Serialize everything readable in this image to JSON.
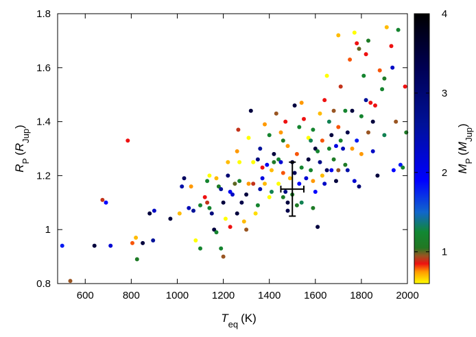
{
  "chart_data": {
    "type": "scatter",
    "title": "",
    "xlabel": {
      "main": "T",
      "sub": "eq",
      "unit": "(K)"
    },
    "ylabel": {
      "main": "R",
      "sub": "P",
      "unit_main": "R",
      "unit_sub": "Jup"
    },
    "colorbar_label": {
      "main": "M",
      "sub": "P",
      "unit_main": "M",
      "unit_sub": "Jup"
    },
    "xlim": [
      480,
      2000
    ],
    "ylim": [
      0.8,
      1.8
    ],
    "xticks": [
      600,
      800,
      1000,
      1200,
      1400,
      1600,
      1800,
      2000
    ],
    "yticks": [
      0.8,
      1,
      1.2,
      1.4,
      1.6,
      1.8
    ],
    "ytick_labels": [
      "0.8",
      "1",
      "1.2",
      "1.4",
      "1.6",
      "1.8"
    ],
    "colorbar": {
      "range": [
        0.6,
        4.0
      ],
      "ticks": [
        1,
        2,
        3,
        4
      ],
      "stops": [
        {
          "v": 0.6,
          "color": "#ffff00"
        },
        {
          "v": 0.75,
          "color": "#ff9900"
        },
        {
          "v": 0.85,
          "color": "#ee1111"
        },
        {
          "v": 0.95,
          "color": "#995522"
        },
        {
          "v": 1.05,
          "color": "#227722"
        },
        {
          "v": 1.25,
          "color": "#118833"
        },
        {
          "v": 1.5,
          "color": "#1166cc"
        },
        {
          "v": 1.9,
          "color": "#0000ff"
        },
        {
          "v": 2.6,
          "color": "#001199"
        },
        {
          "v": 3.3,
          "color": "#000055"
        },
        {
          "v": 4.0,
          "color": "#000000"
        }
      ]
    },
    "grid": false,
    "legend": "none",
    "errorbar": {
      "x": 1500,
      "y": 1.15,
      "xerr": 50,
      "yerr": 0.1
    },
    "points": [
      [
        500,
        0.94,
        1.8
      ],
      [
        535,
        0.81,
        0.95
      ],
      [
        640,
        0.94,
        3.5
      ],
      [
        675,
        1.11,
        0.9
      ],
      [
        690,
        1.1,
        1.9
      ],
      [
        710,
        0.94,
        2.2
      ],
      [
        785,
        1.33,
        0.85
      ],
      [
        805,
        0.95,
        0.8
      ],
      [
        820,
        0.97,
        0.7
      ],
      [
        825,
        0.89,
        1.1
      ],
      [
        850,
        0.95,
        3.5
      ],
      [
        880,
        1.06,
        3.5
      ],
      [
        895,
        0.96,
        2.6
      ],
      [
        900,
        1.07,
        2.3
      ],
      [
        970,
        1.04,
        3.5
      ],
      [
        1010,
        1.06,
        0.7
      ],
      [
        1020,
        1.16,
        2.5
      ],
      [
        1030,
        1.19,
        3.2
      ],
      [
        1050,
        1.08,
        2.4
      ],
      [
        1060,
        1.16,
        0.75
      ],
      [
        1070,
        1.07,
        2.6
      ],
      [
        1080,
        0.96,
        0.6
      ],
      [
        1100,
        0.93,
        1.2
      ],
      [
        1100,
        1.09,
        1.2
      ],
      [
        1120,
        1.12,
        0.85
      ],
      [
        1130,
        1.1,
        0.9
      ],
      [
        1140,
        1.08,
        1.2
      ],
      [
        1140,
        1.2,
        0.6
      ],
      [
        1150,
        1.06,
        2.9
      ],
      [
        1160,
        1.0,
        3.5
      ],
      [
        1170,
        0.99,
        1.2
      ],
      [
        1170,
        1.19,
        0.7
      ],
      [
        1180,
        1.16,
        1.1
      ],
      [
        1190,
        0.93,
        1.2
      ],
      [
        1190,
        1.15,
        2.6
      ],
      [
        1200,
        0.9,
        0.95
      ],
      [
        1200,
        1.1,
        3.5
      ],
      [
        1210,
        1.04,
        0.6
      ],
      [
        1220,
        1.2,
        3.0
      ],
      [
        1220,
        1.25,
        0.7
      ],
      [
        1230,
        1.01,
        0.85
      ],
      [
        1230,
        1.14,
        2.0
      ],
      [
        1240,
        1.13,
        2.3
      ],
      [
        1250,
        1.17,
        1.0
      ],
      [
        1260,
        1.06,
        3.5
      ],
      [
        1260,
        1.29,
        0.75
      ],
      [
        1265,
        1.37,
        0.9
      ],
      [
        1270,
        1.25,
        0.6
      ],
      [
        1270,
        1.18,
        1.2
      ],
      [
        1280,
        1.1,
        3.4
      ],
      [
        1290,
        1.03,
        0.7
      ],
      [
        1300,
        1.0,
        0.95
      ],
      [
        1300,
        1.13,
        3.5
      ],
      [
        1310,
        1.17,
        0.75
      ],
      [
        1320,
        1.44,
        3.5
      ],
      [
        1330,
        1.17,
        0.9
      ],
      [
        1330,
        1.25,
        0.6
      ],
      [
        1340,
        1.06,
        0.65
      ],
      [
        1350,
        1.09,
        1.2
      ],
      [
        1350,
        1.26,
        2.9
      ],
      [
        1360,
        1.3,
        2.6
      ],
      [
        1370,
        1.19,
        2.1
      ],
      [
        1370,
        1.23,
        0.85
      ],
      [
        1380,
        1.39,
        0.75
      ],
      [
        1380,
        1.17,
        0.7
      ],
      [
        1390,
        1.24,
        2.0
      ],
      [
        1400,
        1.35,
        1.2
      ],
      [
        1410,
        1.14,
        1.3
      ],
      [
        1410,
        1.22,
        0.7
      ],
      [
        1420,
        1.28,
        3.5
      ],
      [
        1420,
        1.25,
        1.1
      ],
      [
        1430,
        1.43,
        0.95
      ],
      [
        1440,
        1.26,
        1.2
      ],
      [
        1440,
        1.17,
        0.6
      ],
      [
        1450,
        1.36,
        0.75
      ],
      [
        1450,
        1.25,
        2.2
      ],
      [
        1460,
        1.12,
        1.1
      ],
      [
        1460,
        1.21,
        0.8
      ],
      [
        1470,
        1.4,
        0.85
      ],
      [
        1470,
        1.14,
        2.8
      ],
      [
        1480,
        1.1,
        3.5
      ],
      [
        1480,
        1.07,
        3.4
      ],
      [
        1490,
        1.19,
        0.7
      ],
      [
        1500,
        1.13,
        1.1
      ],
      [
        1500,
        1.25,
        3.5
      ],
      [
        1510,
        1.21,
        3.3
      ],
      [
        1510,
        1.46,
        3.5
      ],
      [
        1520,
        1.28,
        0.8
      ],
      [
        1520,
        1.09,
        1.1
      ],
      [
        1530,
        1.38,
        1.2
      ],
      [
        1530,
        1.17,
        1.9
      ],
      [
        1540,
        1.1,
        1.3
      ],
      [
        1540,
        1.47,
        0.75
      ],
      [
        1550,
        1.41,
        0.85
      ],
      [
        1560,
        1.19,
        2.2
      ],
      [
        1570,
        1.34,
        0.6
      ],
      [
        1570,
        1.26,
        3.5
      ],
      [
        1580,
        1.22,
        1.2
      ],
      [
        1580,
        1.33,
        1.3
      ],
      [
        1590,
        1.08,
        1.1
      ],
      [
        1590,
        1.18,
        0.75
      ],
      [
        1600,
        1.3,
        3.5
      ],
      [
        1600,
        1.14,
        1.9
      ],
      [
        1610,
        1.01,
        3.5
      ],
      [
        1610,
        1.29,
        1.2
      ],
      [
        1620,
        1.25,
        2.8
      ],
      [
        1620,
        1.43,
        0.7
      ],
      [
        1630,
        1.2,
        0.7
      ],
      [
        1630,
        1.33,
        0.8
      ],
      [
        1640,
        1.48,
        0.85
      ],
      [
        1640,
        1.17,
        2.3
      ],
      [
        1650,
        1.57,
        0.6
      ],
      [
        1650,
        1.22,
        3.2
      ],
      [
        1660,
        1.3,
        1.2
      ],
      [
        1660,
        1.4,
        1.3
      ],
      [
        1670,
        1.22,
        2.0
      ],
      [
        1670,
        1.35,
        3.5
      ],
      [
        1680,
        1.44,
        0.95
      ],
      [
        1680,
        1.26,
        1.1
      ],
      [
        1690,
        1.18,
        3.5
      ],
      [
        1690,
        1.31,
        2.1
      ],
      [
        1700,
        1.38,
        0.8
      ],
      [
        1700,
        1.72,
        0.7
      ],
      [
        1710,
        1.33,
        1.2
      ],
      [
        1710,
        1.53,
        0.9
      ],
      [
        1720,
        1.3,
        2.4
      ],
      [
        1730,
        1.44,
        1.2
      ],
      [
        1730,
        1.24,
        1.1
      ],
      [
        1740,
        1.36,
        3.4
      ],
      [
        1740,
        1.22,
        2.5
      ],
      [
        1750,
        1.63,
        0.8
      ],
      [
        1760,
        1.3,
        0.75
      ],
      [
        1760,
        1.44,
        3.5
      ],
      [
        1770,
        1.73,
        0.6
      ],
      [
        1770,
        1.18,
        2.2
      ],
      [
        1780,
        1.69,
        0.85
      ],
      [
        1780,
        1.33,
        1.8
      ],
      [
        1790,
        1.16,
        3.0
      ],
      [
        1790,
        1.67,
        1.0
      ],
      [
        1800,
        1.42,
        1.2
      ],
      [
        1800,
        1.28,
        0.75
      ],
      [
        1810,
        1.57,
        1.2
      ],
      [
        1820,
        1.65,
        0.85
      ],
      [
        1820,
        1.48,
        2.6
      ],
      [
        1830,
        1.36,
        0.95
      ],
      [
        1830,
        1.7,
        1.1
      ],
      [
        1840,
        1.47,
        0.85
      ],
      [
        1850,
        1.4,
        3.5
      ],
      [
        1850,
        1.29,
        2.3
      ],
      [
        1860,
        1.46,
        0.85
      ],
      [
        1870,
        1.2,
        3.5
      ],
      [
        1880,
        1.59,
        0.8
      ],
      [
        1890,
        1.52,
        1.2
      ],
      [
        1900,
        1.56,
        1.1
      ],
      [
        1900,
        1.35,
        1.3
      ],
      [
        1910,
        1.75,
        0.7
      ],
      [
        1930,
        1.68,
        0.85
      ],
      [
        1935,
        1.6,
        2.3
      ],
      [
        1940,
        1.22,
        1.9
      ],
      [
        1950,
        1.4,
        0.95
      ],
      [
        1960,
        1.74,
        1.2
      ],
      [
        1970,
        1.24,
        1.8
      ],
      [
        1980,
        1.23,
        1.2
      ],
      [
        1990,
        1.53,
        0.85
      ],
      [
        1995,
        1.36,
        1.1
      ],
      [
        1400,
        1.12,
        0.6
      ],
      [
        1310,
        1.34,
        0.6
      ],
      [
        1540,
        1.23,
        1.2
      ],
      [
        1130,
        1.18,
        1.2
      ],
      [
        1360,
        1.15,
        2.5
      ],
      [
        1460,
        1.33,
        1.1
      ],
      [
        1700,
        1.22,
        0.95
      ],
      [
        1590,
        1.37,
        1.2
      ],
      [
        1480,
        1.31,
        0.75
      ]
    ]
  }
}
